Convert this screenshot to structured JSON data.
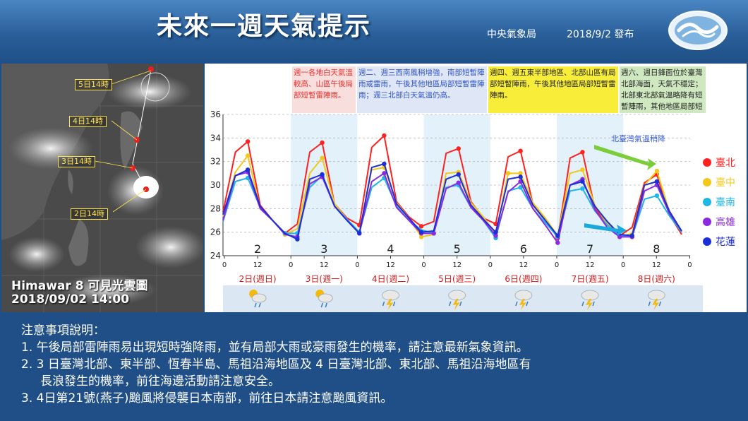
{
  "header": {
    "title": "未來一週天氣提示",
    "agency": "中央氣象局",
    "publish": "2018/9/2 發布"
  },
  "satellite": {
    "caption_line1": "Himawar 8 可見光雲圖",
    "caption_line2": "2018/09/02  14:00",
    "track_labels": [
      "5日14時",
      "4日14時",
      "3日14時",
      "2日14時"
    ]
  },
  "chart_data": {
    "type": "line",
    "ylim": [
      24,
      36
    ],
    "yticks": [
      24,
      26,
      28,
      30,
      32,
      34,
      36
    ],
    "x_ticks": [
      "0",
      "12",
      "0",
      "12",
      "0",
      "12",
      "0",
      "12",
      "0",
      "12",
      "0",
      "12",
      "0",
      "12",
      "0"
    ],
    "day_numbers": [
      "2",
      "3",
      "4",
      "5",
      "6",
      "7",
      "8"
    ],
    "day_labels": [
      "2日(週日)",
      "3日(週一)",
      "4日(週二)",
      "5日(週三)",
      "6日(週四)",
      "7日(週五)",
      "8日(週六)"
    ],
    "weather_icons": [
      "sunny-cloudy-rain-icon",
      "sunny-cloudy-rain-icon",
      "thunderstorm-icon",
      "thunderstorm-icon",
      "thunderstorm-icon",
      "thunderstorm-icon",
      "thunderstorm-icon"
    ],
    "notes": [
      {
        "text": "週一各地白天氣溫較高、山區午後局部短暫雷陣雨。",
        "color": "#e8322d",
        "bg": "#f9dede"
      },
      {
        "text": "週二、週三西南風稍增強，南部短暫陣雨或雷雨，午後其他地區局部短暫雷陣雨；週三北部白天氣溫仍高。",
        "color": "#2f55c8",
        "bg": "#dfe7f7"
      },
      {
        "text": "週四、週五東半部地區、北部山區有局部短暫陣雨，午後其他地區局部短暫雷陣雨。",
        "color": "#222222",
        "bg": "#f8ee3a"
      },
      {
        "text": "週六、週日鋒面位於臺灣北部海面，天氣不穩定；北部東北部氣溫略降有短暫陣雨，其他地區局部短暫陣雨",
        "color": "#222222",
        "bg": "#cfe8c0"
      }
    ],
    "annotation": "北臺灣氣溫稍降",
    "series": [
      {
        "name": "臺北",
        "color": "#ff2020",
        "values": [
          27.7,
          32.8,
          33.7,
          28.3,
          27.0,
          25.9,
          26.7,
          32.8,
          33.6,
          28.4,
          27.2,
          26.6,
          33.2,
          34.2,
          28.6,
          27.3,
          26.5,
          26.9,
          32.7,
          33.1,
          28.6,
          27.2,
          26.7,
          32.4,
          32.9,
          28.4,
          27.1,
          25.5,
          32.3,
          32.8,
          28.0,
          26.7,
          25.7,
          26.4,
          30.2,
          30.9,
          27.5,
          25.8
        ]
      },
      {
        "name": "臺中",
        "color": "#f2c81a",
        "values": [
          27.3,
          31.1,
          32.5,
          28.0,
          27.0,
          25.8,
          26.3,
          31.0,
          32.3,
          28.4,
          27.1,
          25.9,
          31.3,
          31.5,
          28.5,
          27.2,
          25.6,
          25.8,
          31.0,
          31.1,
          28.5,
          27.3,
          25.8,
          31.0,
          31.0,
          28.5,
          27.2,
          25.7,
          31.0,
          31.3,
          28.3,
          26.7,
          25.6,
          25.9,
          30.0,
          31.2,
          27.8,
          26.0
        ]
      },
      {
        "name": "臺南",
        "color": "#1fb7e5",
        "values": [
          26.9,
          30.3,
          30.6,
          28.1,
          27.0,
          25.9,
          25.9,
          29.8,
          30.8,
          28.2,
          27.1,
          26.0,
          29.8,
          30.6,
          28.2,
          27.0,
          26.2,
          25.9,
          29.8,
          30.0,
          28.1,
          27.0,
          25.5,
          29.5,
          29.8,
          28.0,
          26.8,
          25.6,
          29.5,
          29.7,
          27.8,
          26.6,
          25.7,
          25.6,
          28.8,
          29.1,
          27.4,
          26.0
        ]
      },
      {
        "name": "高雄",
        "color": "#8a2be2",
        "values": [
          27.0,
          30.8,
          31.1,
          28.0,
          27.0,
          25.8,
          25.6,
          30.1,
          30.7,
          28.2,
          27.0,
          25.9,
          30.3,
          31.0,
          28.1,
          27.0,
          25.9,
          25.9,
          29.7,
          30.2,
          28.1,
          27.0,
          25.7,
          29.4,
          30.3,
          28.0,
          26.6,
          25.1,
          30.0,
          30.5,
          27.9,
          26.4,
          25.6,
          25.6,
          29.5,
          30.0,
          27.6,
          26.1
        ]
      },
      {
        "name": "花蓮",
        "color": "#1c2fd6",
        "values": [
          27.5,
          30.8,
          31.3,
          28.2,
          27.0,
          25.9,
          25.4,
          30.5,
          30.9,
          28.2,
          27.0,
          25.9,
          31.5,
          31.8,
          28.4,
          27.2,
          26.0,
          26.1,
          30.5,
          30.9,
          28.3,
          27.1,
          26.0,
          30.5,
          30.7,
          28.3,
          27.0,
          25.7,
          30.0,
          30.3,
          28.2,
          26.9,
          25.8,
          25.7,
          30.0,
          30.3,
          27.8,
          26.1
        ]
      }
    ]
  },
  "notes_section": {
    "heading": "注意事項說明：",
    "items": [
      "1.  午後局部雷陣雨易出現短時強降雨，並有局部大雨或豪雨發生的機率，請注意最新氣象資訊。",
      "2.  3 日臺灣北部、東半部、恆春半島、馬祖沿海地區及 4 日臺灣北部、東北部、馬祖沿海地區有",
      "     長浪發生的機率，前往海邊活動請注意安全。",
      "3.  4日第21號(燕子)颱風將侵襲日本南部，前往日本請注意颱風資訊。"
    ]
  }
}
